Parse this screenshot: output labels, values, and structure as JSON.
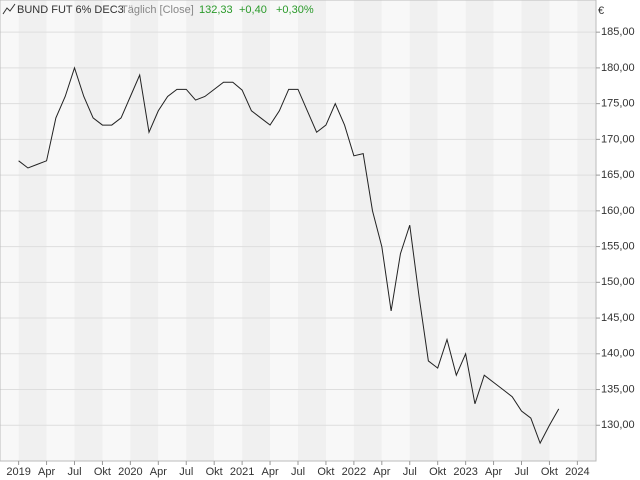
{
  "chart_data": {
    "type": "line",
    "header": {
      "instrument": "BUND FUT 6% DEC3",
      "interval": "Täglich [Close]",
      "last": "132,33",
      "change": "+0,40",
      "change_pct": "+0,30%"
    },
    "y_unit": "€",
    "x": [
      "2019-01",
      "2019-02",
      "2019-03",
      "2019-04",
      "2019-05",
      "2019-06",
      "2019-07",
      "2019-08",
      "2019-09",
      "2019-10",
      "2019-11",
      "2019-12",
      "2020-01",
      "2020-02",
      "2020-03",
      "2020-04",
      "2020-05",
      "2020-06",
      "2020-07",
      "2020-08",
      "2020-09",
      "2020-10",
      "2020-11",
      "2020-12",
      "2021-01",
      "2021-02",
      "2021-03",
      "2021-04",
      "2021-05",
      "2021-06",
      "2021-07",
      "2021-08",
      "2021-09",
      "2021-10",
      "2021-11",
      "2021-12",
      "2022-01",
      "2022-02",
      "2022-03",
      "2022-04",
      "2022-05",
      "2022-06",
      "2022-07",
      "2022-08",
      "2022-09",
      "2022-10",
      "2022-11",
      "2022-12",
      "2023-01",
      "2023-02",
      "2023-03",
      "2023-04",
      "2023-05",
      "2023-06",
      "2023-07",
      "2023-08",
      "2023-09",
      "2023-10",
      "2023-11"
    ],
    "series": [
      {
        "name": "BUND FUT 6% DEC3",
        "color": "#222222",
        "values": [
          167,
          166,
          166.5,
          167,
          173,
          176,
          180,
          176,
          173,
          172,
          172,
          173,
          176,
          179,
          171,
          174,
          176,
          177,
          177,
          175.5,
          176,
          177,
          178,
          178,
          176.9,
          174,
          173,
          172,
          174,
          177,
          177,
          174,
          171,
          172,
          175,
          172,
          167.7,
          168,
          160,
          155,
          146,
          154,
          158,
          148,
          139,
          138,
          142,
          137,
          140,
          133,
          137,
          136,
          135,
          134,
          132,
          131,
          127.5,
          130,
          132.3
        ]
      }
    ],
    "xlim": [
      "2018-11",
      "2024-03"
    ],
    "xticks": [
      {
        "value": "2019-01",
        "label": "2019"
      },
      {
        "value": "2019-04",
        "label": "Apr"
      },
      {
        "value": "2019-07",
        "label": "Jul"
      },
      {
        "value": "2019-10",
        "label": "Okt"
      },
      {
        "value": "2020-01",
        "label": "2020"
      },
      {
        "value": "2020-04",
        "label": "Apr"
      },
      {
        "value": "2020-07",
        "label": "Jul"
      },
      {
        "value": "2020-10",
        "label": "Okt"
      },
      {
        "value": "2021-01",
        "label": "2021"
      },
      {
        "value": "2021-04",
        "label": "Apr"
      },
      {
        "value": "2021-07",
        "label": "Jul"
      },
      {
        "value": "2021-10",
        "label": "Okt"
      },
      {
        "value": "2022-01",
        "label": "2022"
      },
      {
        "value": "2022-04",
        "label": "Apr"
      },
      {
        "value": "2022-07",
        "label": "Jul"
      },
      {
        "value": "2022-10",
        "label": "Okt"
      },
      {
        "value": "2023-01",
        "label": "2023"
      },
      {
        "value": "2023-04",
        "label": "Apr"
      },
      {
        "value": "2023-07",
        "label": "Jul"
      },
      {
        "value": "2023-10",
        "label": "Okt"
      },
      {
        "value": "2024-01",
        "label": "2024"
      }
    ],
    "ylim": [
      125,
      189.5
    ],
    "yticks": [
      {
        "value": 130,
        "label": "130,00"
      },
      {
        "value": 135,
        "label": "135,00"
      },
      {
        "value": 140,
        "label": "140,00"
      },
      {
        "value": 145,
        "label": "145,00"
      },
      {
        "value": 150,
        "label": "150,00"
      },
      {
        "value": 155,
        "label": "155,00"
      },
      {
        "value": 160,
        "label": "160,00"
      },
      {
        "value": 165,
        "label": "165,00"
      },
      {
        "value": 170,
        "label": "170,00"
      },
      {
        "value": 175,
        "label": "175,00"
      },
      {
        "value": 180,
        "label": "180,00"
      },
      {
        "value": 185,
        "label": "185,00"
      }
    ],
    "grid": true
  }
}
